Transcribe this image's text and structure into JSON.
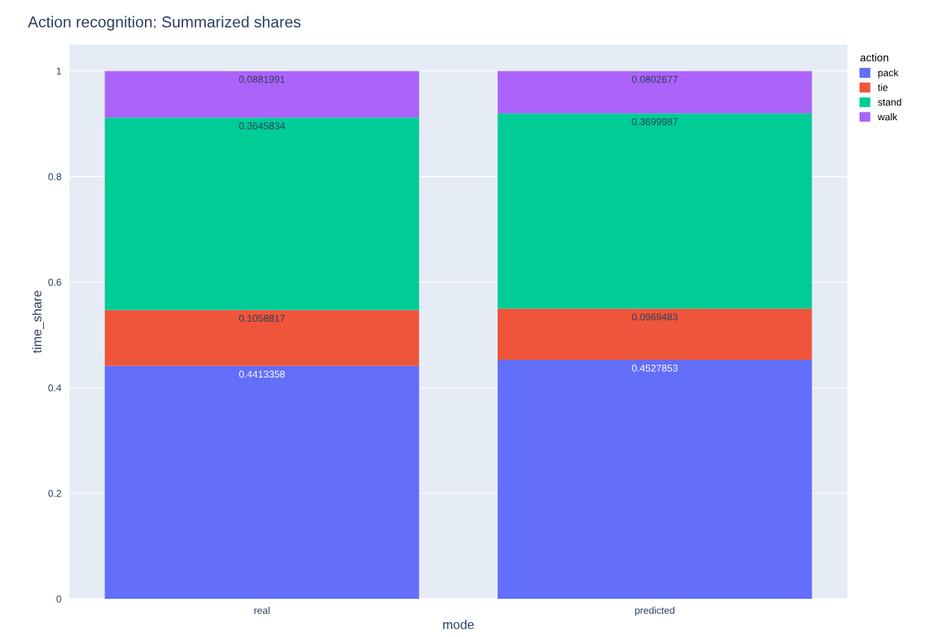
{
  "chart_data": {
    "type": "bar",
    "title": "Action recognition: Summarized shares",
    "xlabel": "mode",
    "ylabel": "time_share",
    "legend_title": "action",
    "categories": [
      "real",
      "predicted"
    ],
    "series": [
      {
        "name": "pack",
        "color": "#636efa",
        "values": [
          0.4413358,
          0.4527853
        ]
      },
      {
        "name": "tie",
        "color": "#ef553b",
        "values": [
          0.1058817,
          0.0969483
        ]
      },
      {
        "name": "stand",
        "color": "#00cc96",
        "values": [
          0.3645834,
          0.3699987
        ]
      },
      {
        "name": "walk",
        "color": "#ab63fa",
        "values": [
          0.0881991,
          0.0802677
        ]
      }
    ],
    "stacked": true,
    "data_labels": true,
    "ylim": [
      0,
      1.05
    ],
    "yticks": [
      0,
      0.2,
      0.4,
      0.6,
      0.8,
      1
    ],
    "grid": "y",
    "legend": "top right"
  }
}
